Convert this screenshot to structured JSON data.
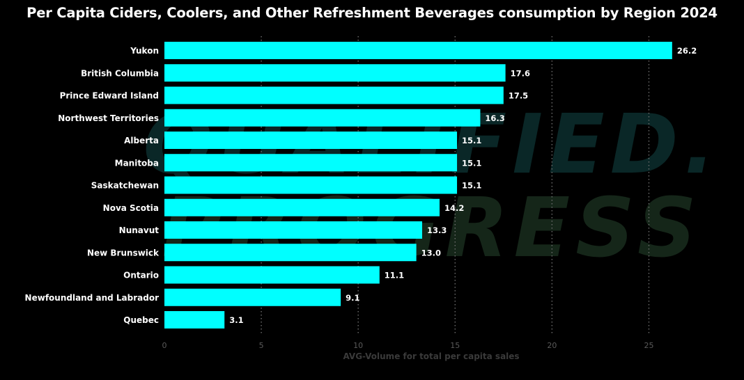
{
  "chart_data": {
    "type": "bar",
    "orientation": "horizontal",
    "title": "Per Capita Ciders, Coolers, and Other Refreshment Beverages consumption by Region 2024",
    "xlabel": "AVG-Volume for total per capita sales",
    "ylabel": "",
    "categories": [
      "Yukon",
      "British Columbia",
      "Prince Edward Island",
      "Northwest Territories",
      "Alberta",
      "Manitoba",
      "Saskatchewan",
      "Nova Scotia",
      "Nunavut",
      "New Brunswick",
      "Ontario",
      "Newfoundland and Labrador",
      "Quebec"
    ],
    "values": [
      26.2,
      17.6,
      17.5,
      16.3,
      15.1,
      15.1,
      15.1,
      14.2,
      13.3,
      13.0,
      11.1,
      9.1,
      3.1
    ],
    "data_labels": [
      "26.2",
      "17.6",
      "17.5",
      "16.3",
      "15.1",
      "15.1",
      "15.1",
      "14.2",
      "13.3",
      "13.0",
      "11.1",
      "9.1",
      "3.1"
    ],
    "xlim": [
      0,
      27.5
    ],
    "xticks": [
      0,
      5,
      10,
      15,
      20,
      25
    ],
    "grid": "vertical dotted",
    "legend": "none",
    "colors": {
      "background": "#000000",
      "bar": "#00FFFF",
      "text": "#FFFFFF",
      "axis_text": "#5A5A5A",
      "grid": "#6E6E6E"
    },
    "watermark_lines": [
      "QUALIFIED.",
      "PROGRESS"
    ]
  }
}
